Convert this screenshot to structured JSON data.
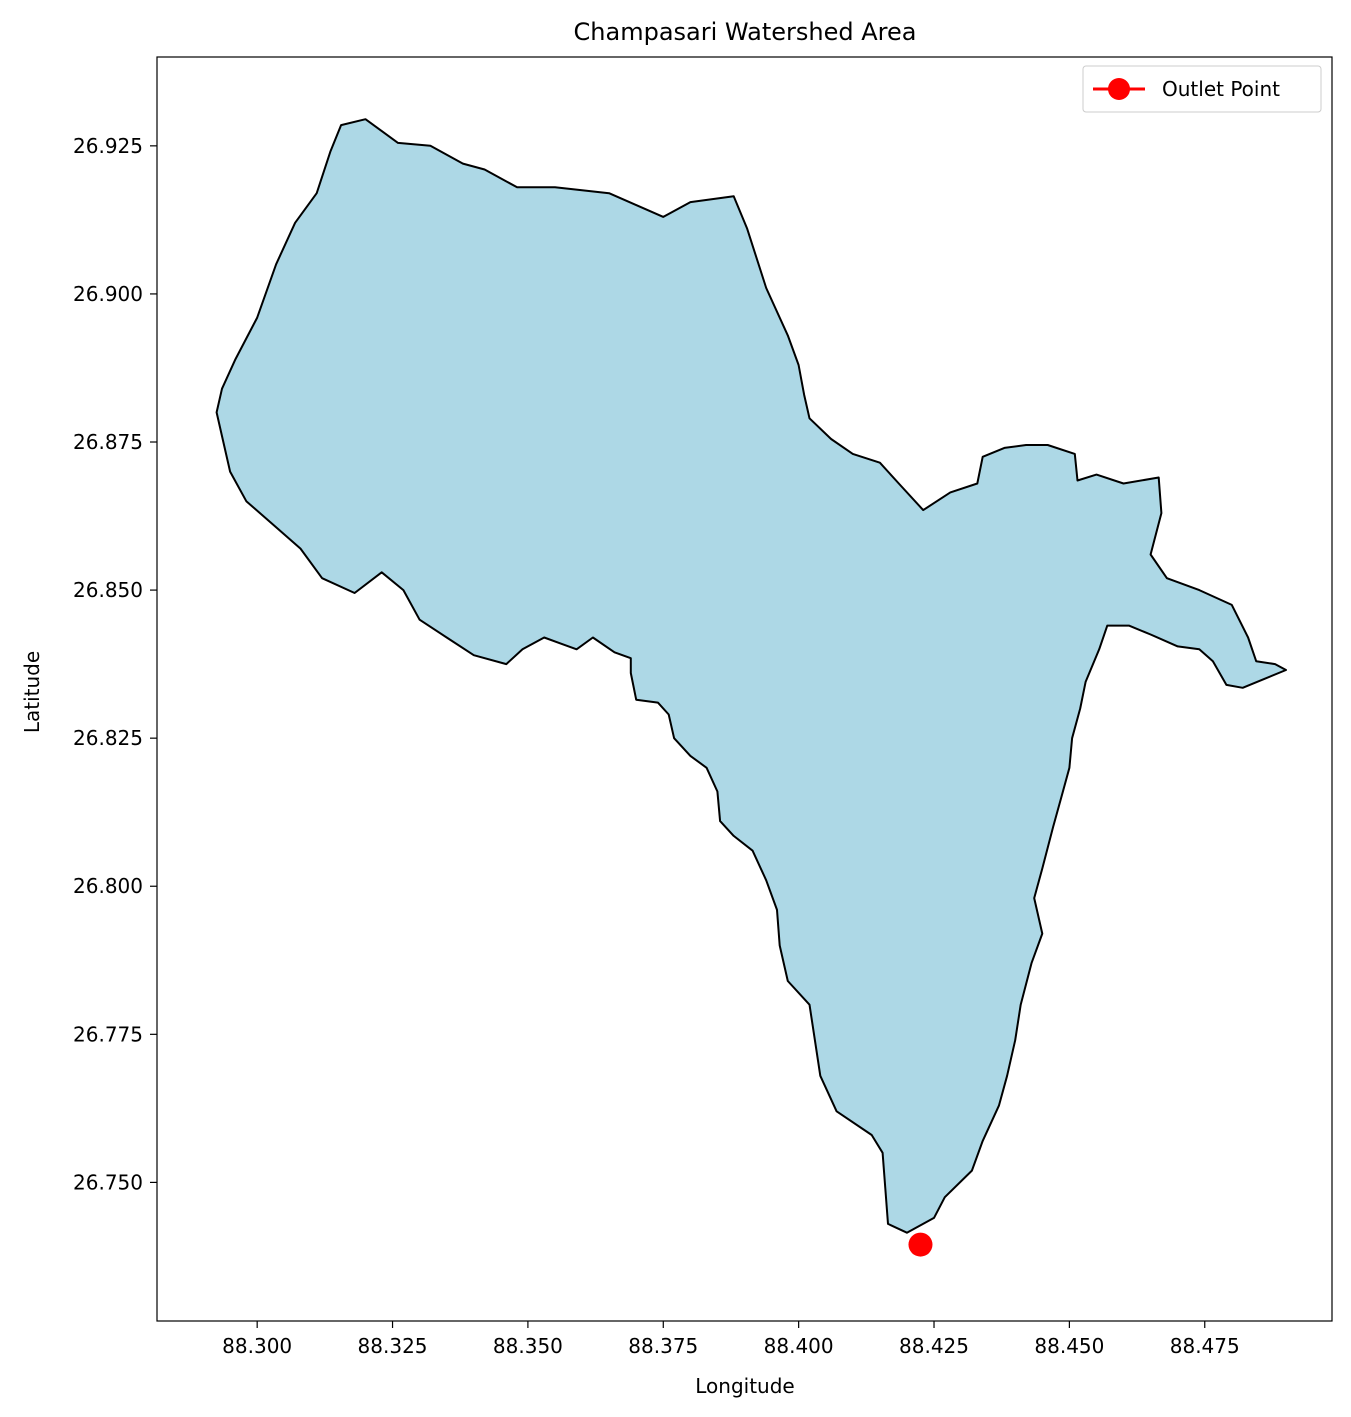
{
  "chart_data": {
    "type": "map",
    "title": "Champasari Watershed Area",
    "xlabel": "Longitude",
    "ylabel": "Latitude",
    "xlim": [
      88.2815,
      88.4985
    ],
    "ylim": [
      26.7266,
      26.94
    ],
    "xticks": [
      88.3,
      88.325,
      88.35,
      88.375,
      88.4,
      88.425,
      88.45,
      88.475
    ],
    "xtick_labels": [
      "88.300",
      "88.325",
      "88.350",
      "88.375",
      "88.400",
      "88.425",
      "88.450",
      "88.475"
    ],
    "yticks": [
      26.75,
      26.775,
      26.8,
      26.825,
      26.85,
      26.875,
      26.9,
      26.925
    ],
    "ytick_labels": [
      "26.750",
      "26.775",
      "26.800",
      "26.825",
      "26.850",
      "26.875",
      "26.900",
      "26.925"
    ],
    "grid": false,
    "legend": {
      "placement": "top-right",
      "entries": [
        {
          "label": "Outlet Point",
          "color": "#ff0000",
          "marker": "circle"
        }
      ]
    },
    "watershed": {
      "fill_color": "#add8e6",
      "edge_color": "#000000",
      "boundary": [
        [
          88.2925,
          26.88
        ],
        [
          88.2935,
          26.884
        ],
        [
          88.296,
          26.889
        ],
        [
          88.3,
          26.896
        ],
        [
          88.3035,
          26.905
        ],
        [
          88.307,
          26.912
        ],
        [
          88.311,
          26.917
        ],
        [
          88.3135,
          26.924
        ],
        [
          88.3155,
          26.9285
        ],
        [
          88.32,
          26.9295
        ],
        [
          88.326,
          26.9255
        ],
        [
          88.332,
          26.925
        ],
        [
          88.338,
          26.922
        ],
        [
          88.342,
          26.921
        ],
        [
          88.348,
          26.918
        ],
        [
          88.355,
          26.918
        ],
        [
          88.36,
          26.9175
        ],
        [
          88.365,
          26.917
        ],
        [
          88.37,
          26.915
        ],
        [
          88.375,
          26.913
        ],
        [
          88.38,
          26.9155
        ],
        [
          88.388,
          26.9165
        ],
        [
          88.3905,
          26.911
        ],
        [
          88.394,
          26.901
        ],
        [
          88.398,
          26.893
        ],
        [
          88.4,
          26.888
        ],
        [
          88.401,
          26.883
        ],
        [
          88.402,
          26.879
        ],
        [
          88.406,
          26.8755
        ],
        [
          88.41,
          26.873
        ],
        [
          88.415,
          26.8715
        ],
        [
          88.4185,
          26.868
        ],
        [
          88.423,
          26.8635
        ],
        [
          88.428,
          26.8665
        ],
        [
          88.433,
          26.868
        ],
        [
          88.434,
          26.8725
        ],
        [
          88.438,
          26.874
        ],
        [
          88.442,
          26.8745
        ],
        [
          88.446,
          26.8745
        ],
        [
          88.451,
          26.873
        ],
        [
          88.4515,
          26.8685
        ],
        [
          88.455,
          26.8695
        ],
        [
          88.46,
          26.868
        ],
        [
          88.4665,
          26.869
        ],
        [
          88.467,
          26.863
        ],
        [
          88.465,
          26.856
        ],
        [
          88.468,
          26.852
        ],
        [
          88.474,
          26.85
        ],
        [
          88.48,
          26.8475
        ],
        [
          88.483,
          26.842
        ],
        [
          88.4845,
          26.838
        ],
        [
          88.488,
          26.8375
        ],
        [
          88.49,
          26.8365
        ],
        [
          88.486,
          26.835
        ],
        [
          88.482,
          26.8335
        ],
        [
          88.479,
          26.834
        ],
        [
          88.4765,
          26.838
        ],
        [
          88.474,
          26.84
        ],
        [
          88.47,
          26.8405
        ],
        [
          88.465,
          26.8425
        ],
        [
          88.461,
          26.844
        ],
        [
          88.457,
          26.844
        ],
        [
          88.4555,
          26.84
        ],
        [
          88.453,
          26.8345
        ],
        [
          88.452,
          26.83
        ],
        [
          88.4505,
          26.825
        ],
        [
          88.45,
          26.82
        ],
        [
          88.4485,
          26.815
        ],
        [
          88.447,
          26.81
        ],
        [
          88.445,
          26.803
        ],
        [
          88.4435,
          26.798
        ],
        [
          88.445,
          26.792
        ],
        [
          88.443,
          26.787
        ],
        [
          88.441,
          26.78
        ],
        [
          88.44,
          26.774
        ],
        [
          88.4385,
          26.768
        ],
        [
          88.437,
          26.763
        ],
        [
          88.434,
          26.757
        ],
        [
          88.432,
          26.752
        ],
        [
          88.427,
          26.7475
        ],
        [
          88.425,
          26.744
        ],
        [
          88.42,
          26.7415
        ],
        [
          88.4165,
          26.743
        ],
        [
          88.416,
          26.749
        ],
        [
          88.4155,
          26.755
        ],
        [
          88.4135,
          26.758
        ],
        [
          88.407,
          26.762
        ],
        [
          88.404,
          26.768
        ],
        [
          88.403,
          26.774
        ],
        [
          88.402,
          26.78
        ],
        [
          88.398,
          26.784
        ],
        [
          88.3965,
          26.79
        ],
        [
          88.396,
          26.796
        ],
        [
          88.394,
          26.801
        ],
        [
          88.3915,
          26.806
        ],
        [
          88.388,
          26.8085
        ],
        [
          88.3855,
          26.811
        ],
        [
          88.385,
          26.816
        ],
        [
          88.383,
          26.82
        ],
        [
          88.38,
          26.822
        ],
        [
          88.377,
          26.825
        ],
        [
          88.376,
          26.829
        ],
        [
          88.374,
          26.831
        ],
        [
          88.37,
          26.8315
        ],
        [
          88.369,
          26.836
        ],
        [
          88.369,
          26.8385
        ],
        [
          88.366,
          26.8395
        ],
        [
          88.362,
          26.842
        ],
        [
          88.359,
          26.84
        ],
        [
          88.356,
          26.841
        ],
        [
          88.353,
          26.842
        ],
        [
          88.349,
          26.84
        ],
        [
          88.346,
          26.8375
        ],
        [
          88.34,
          26.839
        ],
        [
          88.335,
          26.842
        ],
        [
          88.33,
          26.845
        ],
        [
          88.327,
          26.85
        ],
        [
          88.323,
          26.853
        ],
        [
          88.318,
          26.8495
        ],
        [
          88.312,
          26.852
        ],
        [
          88.308,
          26.857
        ],
        [
          88.303,
          26.861
        ],
        [
          88.298,
          26.865
        ],
        [
          88.295,
          26.87
        ],
        [
          88.2935,
          26.876
        ]
      ]
    },
    "outlet_point": {
      "name": "Outlet Point",
      "x": 88.4225,
      "y": 26.7395,
      "color": "#ff0000"
    }
  }
}
